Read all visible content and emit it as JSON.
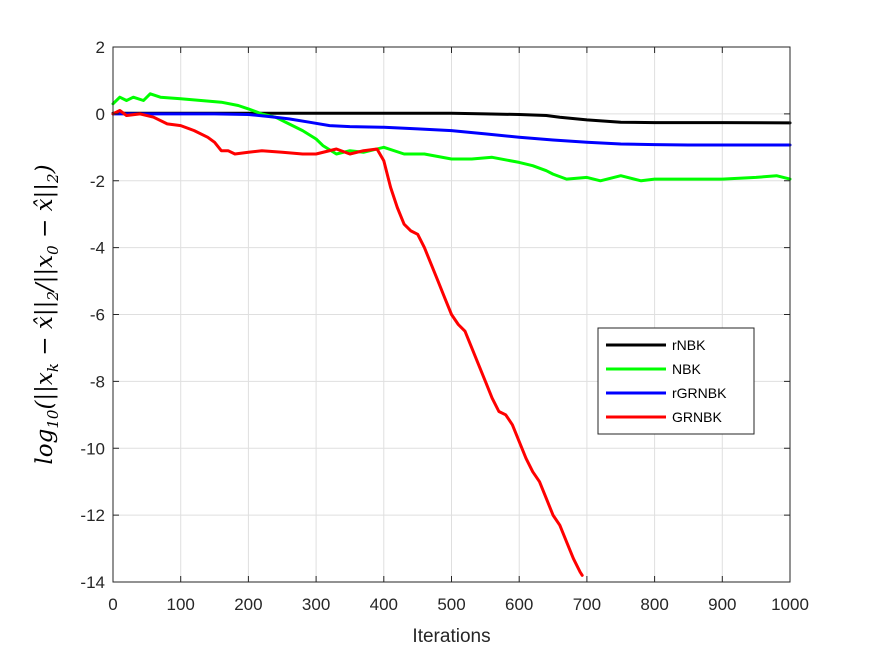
{
  "chart_data": {
    "type": "line",
    "xlabel": "Iterations",
    "ylabel": "log10(||x_k − x̂||2/||x_0 − x̂||2)",
    "xlim": [
      0,
      1000
    ],
    "ylim": [
      -14,
      2
    ],
    "xticks": [
      0,
      100,
      200,
      300,
      400,
      500,
      600,
      700,
      800,
      900,
      1000
    ],
    "yticks": [
      2,
      0,
      -2,
      -4,
      -6,
      -8,
      -10,
      -12,
      -14
    ],
    "grid": true,
    "legend_position": "right",
    "series": [
      {
        "name": "rNBK",
        "color": "#000000",
        "x": [
          0,
          100,
          200,
          300,
          400,
          500,
          550,
          600,
          640,
          660,
          700,
          750,
          800,
          900,
          1000
        ],
        "y": [
          0.02,
          0.02,
          0.02,
          0.02,
          0.02,
          0.02,
          0.0,
          -0.02,
          -0.05,
          -0.1,
          -0.18,
          -0.25,
          -0.26,
          -0.26,
          -0.27
        ]
      },
      {
        "name": "NBK",
        "color": "#00ff00",
        "x": [
          0,
          10,
          20,
          30,
          45,
          55,
          70,
          100,
          130,
          160,
          185,
          200,
          220,
          240,
          260,
          280,
          300,
          310,
          330,
          350,
          370,
          400,
          430,
          460,
          500,
          530,
          560,
          600,
          620,
          640,
          650,
          670,
          700,
          720,
          750,
          780,
          800,
          850,
          900,
          950,
          980,
          1000
        ],
        "y": [
          0.3,
          0.5,
          0.4,
          0.5,
          0.4,
          0.6,
          0.5,
          0.45,
          0.4,
          0.35,
          0.25,
          0.15,
          0.0,
          -0.1,
          -0.3,
          -0.5,
          -0.75,
          -0.95,
          -1.2,
          -1.1,
          -1.15,
          -1.0,
          -1.2,
          -1.2,
          -1.35,
          -1.35,
          -1.3,
          -1.45,
          -1.55,
          -1.7,
          -1.8,
          -1.95,
          -1.9,
          -2.0,
          -1.85,
          -2.0,
          -1.95,
          -1.95,
          -1.95,
          -1.9,
          -1.85,
          -1.95
        ]
      },
      {
        "name": "rGRNBK",
        "color": "#0000ff",
        "x": [
          0,
          50,
          100,
          150,
          200,
          230,
          260,
          290,
          320,
          350,
          400,
          450,
          500,
          550,
          600,
          650,
          700,
          750,
          800,
          850,
          900,
          950,
          1000
        ],
        "y": [
          0.0,
          0.0,
          0.0,
          0.0,
          -0.02,
          -0.08,
          -0.15,
          -0.25,
          -0.35,
          -0.38,
          -0.4,
          -0.45,
          -0.5,
          -0.6,
          -0.7,
          -0.78,
          -0.85,
          -0.9,
          -0.92,
          -0.93,
          -0.93,
          -0.93,
          -0.93
        ]
      },
      {
        "name": "GRNBK",
        "color": "#ff0000",
        "x": [
          0,
          10,
          20,
          40,
          60,
          80,
          100,
          120,
          140,
          150,
          160,
          170,
          180,
          200,
          220,
          250,
          280,
          300,
          330,
          350,
          370,
          390,
          400,
          410,
          420,
          430,
          440,
          450,
          460,
          470,
          480,
          490,
          500,
          510,
          520,
          530,
          540,
          550,
          560,
          570,
          580,
          590,
          600,
          610,
          620,
          630,
          640,
          650,
          660,
          670,
          680,
          690,
          693
        ],
        "y": [
          0.0,
          0.1,
          -0.05,
          0.0,
          -0.1,
          -0.3,
          -0.35,
          -0.5,
          -0.7,
          -0.85,
          -1.1,
          -1.1,
          -1.2,
          -1.15,
          -1.1,
          -1.15,
          -1.2,
          -1.2,
          -1.05,
          -1.2,
          -1.1,
          -1.05,
          -1.4,
          -2.2,
          -2.8,
          -3.3,
          -3.5,
          -3.6,
          -4.0,
          -4.5,
          -5.0,
          -5.5,
          -6.0,
          -6.3,
          -6.5,
          -7.0,
          -7.5,
          -8.0,
          -8.5,
          -8.9,
          -9.0,
          -9.3,
          -9.8,
          -10.3,
          -10.7,
          -11.0,
          -11.5,
          -12.0,
          -12.3,
          -12.8,
          -13.3,
          -13.7,
          -13.8
        ]
      }
    ]
  }
}
